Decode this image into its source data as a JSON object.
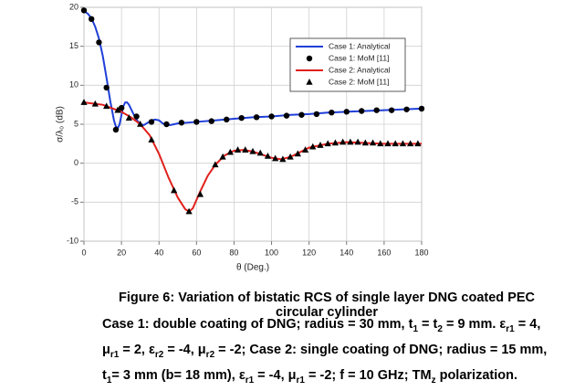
{
  "chart_data": {
    "type": "line",
    "xlabel": "θ (Deg.)",
    "ylabel": "σ/λ₀ (dB)",
    "xlim": [
      0,
      180
    ],
    "xticks": [
      0,
      20,
      40,
      60,
      80,
      100,
      120,
      140,
      160,
      180
    ],
    "ylim": [
      -10,
      20
    ],
    "yticks": [
      -10,
      -5,
      0,
      5,
      10,
      15,
      20
    ],
    "grid": true,
    "legend": "upper right",
    "series": [
      {
        "name": "Case 1: Analytical",
        "color": "#1f3fd8",
        "style": "line",
        "x": [
          0,
          2,
          4,
          6,
          8,
          10,
          12,
          14,
          16,
          17,
          18,
          19,
          20,
          21,
          22,
          23,
          24,
          26,
          28,
          30,
          32,
          34,
          36,
          38,
          40,
          42,
          44,
          46,
          48,
          50,
          60,
          70,
          80,
          90,
          100,
          110,
          120,
          130,
          140,
          150,
          160,
          170,
          180
        ],
        "values": [
          19.5,
          19.2,
          18.6,
          17.5,
          16,
          13.8,
          11,
          8,
          5.5,
          4.7,
          4.5,
          5,
          6.2,
          7.3,
          7.8,
          7.8,
          7.5,
          6.5,
          5.6,
          5.0,
          4.9,
          5.2,
          5.5,
          5.6,
          5.5,
          5.1,
          4.9,
          4.9,
          5.0,
          5.1,
          5.3,
          5.5,
          5.7,
          5.9,
          6.0,
          6.2,
          6.3,
          6.5,
          6.6,
          6.7,
          6.8,
          6.9,
          7.0
        ]
      },
      {
        "name": "Case 1: MoM [11]",
        "color": "#000000",
        "style": "circle",
        "x": [
          0,
          4,
          8,
          12,
          17,
          20,
          28,
          36,
          44,
          52,
          60,
          68,
          76,
          84,
          92,
          100,
          108,
          116,
          124,
          132,
          140,
          148,
          156,
          164,
          172,
          180
        ],
        "values": [
          19.6,
          18.5,
          15.5,
          9.7,
          4.3,
          7.1,
          6.0,
          5.3,
          5.0,
          5.2,
          5.3,
          5.4,
          5.6,
          5.8,
          5.9,
          6.0,
          6.1,
          6.2,
          6.3,
          6.5,
          6.6,
          6.7,
          6.8,
          6.8,
          6.9,
          7.0
        ]
      },
      {
        "name": "Case 2: Analytical",
        "color": "#e0201c",
        "style": "line",
        "x": [
          0,
          10,
          20,
          25,
          30,
          35,
          40,
          45,
          50,
          54,
          56,
          58,
          62,
          66,
          70,
          75,
          80,
          85,
          90,
          95,
          100,
          105,
          110,
          115,
          120,
          130,
          140,
          150,
          160,
          170,
          180
        ],
        "values": [
          7.8,
          7.5,
          6.6,
          5.9,
          5.0,
          3.6,
          1.2,
          -1.8,
          -4.4,
          -5.9,
          -6.2,
          -5.8,
          -3.6,
          -1.6,
          -0.2,
          1.0,
          1.6,
          1.7,
          1.5,
          1.1,
          0.7,
          0.5,
          0.8,
          1.4,
          2.0,
          2.5,
          2.7,
          2.6,
          2.5,
          2.5,
          2.5
        ]
      },
      {
        "name": "Case 2: MoM [11]",
        "color": "#000000",
        "style": "triangle",
        "x": [
          0,
          6,
          12,
          18,
          24,
          30,
          36,
          48,
          56,
          62,
          70,
          74,
          78,
          82,
          86,
          90,
          94,
          98,
          102,
          106,
          110,
          114,
          118,
          122,
          126,
          130,
          134,
          138,
          142,
          146,
          150,
          154,
          158,
          162,
          166,
          170,
          174,
          178
        ],
        "values": [
          7.8,
          7.6,
          7.3,
          6.8,
          5.8,
          5.0,
          3.0,
          -3.5,
          -6.2,
          -4.0,
          -0.2,
          0.8,
          1.4,
          1.7,
          1.7,
          1.5,
          1.3,
          0.9,
          0.6,
          0.5,
          0.8,
          1.2,
          1.7,
          2.1,
          2.3,
          2.5,
          2.6,
          2.7,
          2.7,
          2.7,
          2.6,
          2.6,
          2.5,
          2.5,
          2.5,
          2.5,
          2.5,
          2.5
        ]
      }
    ]
  },
  "caption": {
    "title": "Figure 6: Variation of bistatic RCS of single layer DNG coated PEC circular cylinder",
    "body": [
      {
        "text": "Case 1: double coating of DNG; radius = 30 mm, "
      },
      {
        "text": "t"
      },
      {
        "sub": "1"
      },
      {
        "text": " = "
      },
      {
        "text": "t"
      },
      {
        "sub": "2"
      },
      {
        "text": " = 9 mm. ε"
      },
      {
        "sub": "r1"
      },
      {
        "text": " = 4, μ"
      },
      {
        "sub": "r1"
      },
      {
        "text": " = 2, ε"
      },
      {
        "sub": "r2"
      },
      {
        "text": " = -4, μ"
      },
      {
        "sub": "r2"
      },
      {
        "text": " = -2; Case 2: single coating of DNG; radius = 15 mm, t"
      },
      {
        "sub": "1"
      },
      {
        "text": "= 3 mm (b= 18 mm), ε"
      },
      {
        "sub": "r1"
      },
      {
        "text": " = -4,  μ"
      },
      {
        "sub": "r1"
      },
      {
        "text": " = -2; f = 10 GHz; TM"
      },
      {
        "sub": "z"
      },
      {
        "text": " polarization."
      }
    ]
  }
}
